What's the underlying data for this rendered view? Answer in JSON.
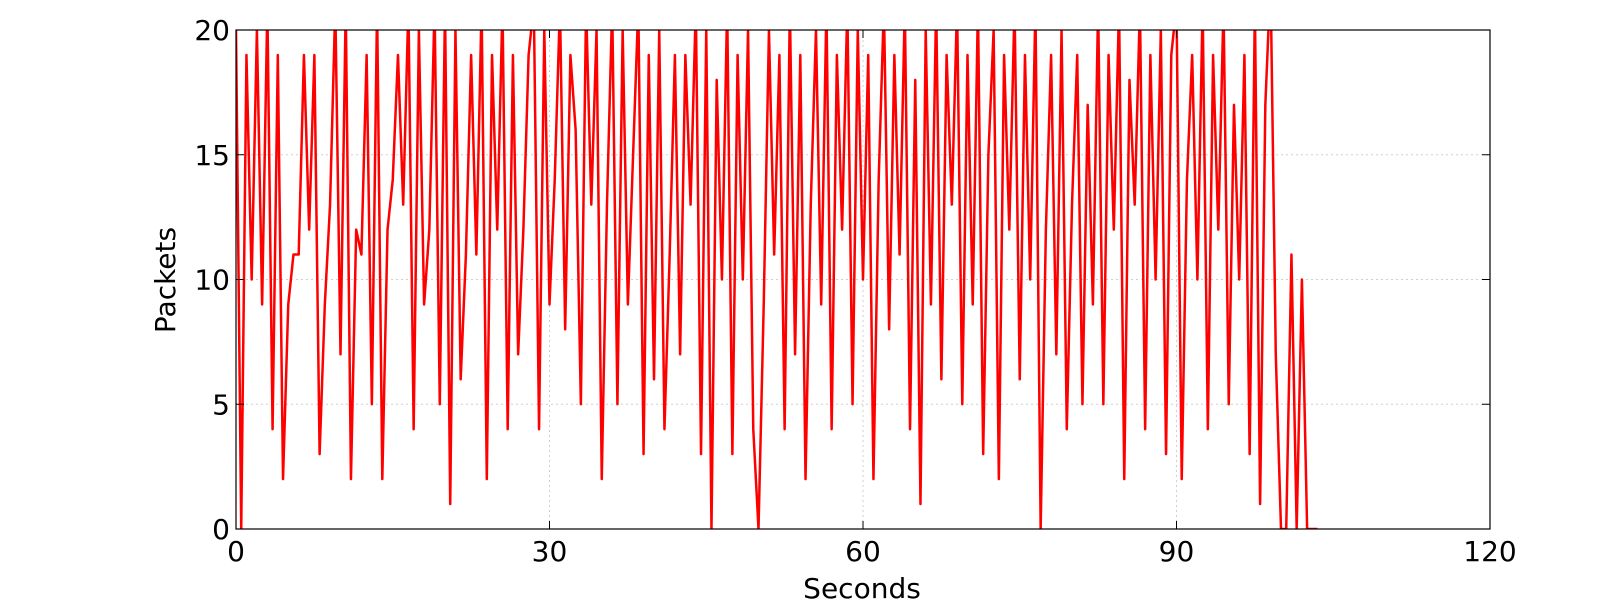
{
  "chart_data": {
    "type": "line",
    "xlabel": "Seconds",
    "ylabel": "Packets",
    "x": [
      0,
      0.5,
      1,
      1.5,
      2,
      2.5,
      3,
      3.5,
      4,
      4.5,
      5,
      5.5,
      6,
      6.5,
      7,
      7.5,
      8,
      8.5,
      9,
      9.5,
      10,
      10.5,
      11,
      11.5,
      12,
      12.5,
      13,
      13.5,
      14,
      14.5,
      15,
      15.5,
      16,
      16.5,
      17,
      17.5,
      18,
      18.5,
      19,
      19.5,
      20,
      20.5,
      21,
      21.5,
      22,
      22.5,
      23,
      23.5,
      24,
      24.5,
      25,
      25.5,
      26,
      26.5,
      27,
      27.5,
      28,
      28.5,
      29,
      29.5,
      30,
      30.5,
      31,
      31.5,
      32,
      32.5,
      33,
      33.5,
      34,
      34.5,
      35,
      35.5,
      36,
      36.5,
      37,
      37.5,
      38,
      38.5,
      39,
      39.5,
      40,
      40.5,
      41,
      41.5,
      42,
      42.5,
      43,
      43.5,
      44,
      44.5,
      45,
      45.5,
      46,
      46.5,
      47,
      47.5,
      48,
      48.5,
      49,
      49.5,
      50,
      50.5,
      51,
      51.5,
      52,
      52.5,
      53,
      53.5,
      54,
      54.5,
      55,
      55.5,
      56,
      56.5,
      57,
      57.5,
      58,
      58.5,
      59,
      59.5,
      60,
      60.5,
      61,
      61.5,
      62,
      62.5,
      63,
      63.5,
      64,
      64.5,
      65,
      65.5,
      66,
      66.5,
      67,
      67.5,
      68,
      68.5,
      69,
      69.5,
      70,
      70.5,
      71,
      71.5,
      72,
      72.5,
      73,
      73.5,
      74,
      74.5,
      75,
      75.5,
      76,
      76.5,
      77,
      77.5,
      78,
      78.5,
      79,
      79.5,
      80,
      80.5,
      81,
      81.5,
      82,
      82.5,
      83,
      83.5,
      84,
      84.5,
      85,
      85.5,
      86,
      86.5,
      87,
      87.5,
      88,
      88.5,
      89,
      89.5,
      90,
      90.5,
      91,
      91.5,
      92,
      92.5,
      93,
      93.5,
      94,
      94.5,
      95,
      95.5,
      96,
      96.5,
      97,
      97.5,
      98,
      98.5,
      99,
      99.5,
      100,
      100.5,
      101,
      101.5,
      102,
      102.5,
      103,
      103.5
    ],
    "series": [
      {
        "name": "packets",
        "color": "#ff0000",
        "values": [
          20,
          0,
          19,
          10,
          20,
          9,
          21,
          4,
          19,
          2,
          9,
          11,
          11,
          19,
          12,
          19,
          3,
          9,
          13,
          21,
          7,
          21,
          2,
          12,
          11,
          19,
          5,
          21,
          2,
          12,
          14,
          19,
          13,
          21,
          4,
          20,
          9,
          12,
          21,
          5,
          21,
          1,
          20,
          6,
          11,
          19,
          11,
          21,
          2,
          19,
          12,
          21,
          4,
          19,
          7,
          12,
          19,
          21,
          4,
          20,
          9,
          14,
          21,
          8,
          19,
          16,
          5,
          21,
          13,
          20,
          2,
          13,
          21,
          5,
          20,
          9,
          15,
          21,
          3,
          19,
          6,
          20,
          4,
          11,
          19,
          7,
          19,
          13,
          21,
          3,
          20,
          0,
          18,
          10,
          21,
          3,
          19,
          10,
          20,
          4,
          0,
          9,
          20,
          11,
          19,
          4,
          21,
          7,
          19,
          2,
          13,
          20,
          9,
          21,
          4,
          19,
          12,
          21,
          5,
          20,
          10,
          19,
          2,
          14,
          21,
          8,
          19,
          11,
          21,
          4,
          18,
          1,
          20,
          9,
          21,
          6,
          19,
          13,
          21,
          5,
          19,
          9,
          21,
          3,
          15,
          20,
          2,
          19,
          12,
          21,
          6,
          19,
          10,
          21,
          0,
          12,
          19,
          7,
          20,
          4,
          13,
          19,
          5,
          17,
          9,
          21,
          5,
          19,
          12,
          21,
          2,
          18,
          13,
          21,
          4,
          19,
          10,
          20,
          3,
          19,
          21,
          2,
          14,
          19,
          10,
          21,
          4,
          19,
          12,
          21,
          5,
          17,
          10,
          19,
          3,
          21,
          1,
          17,
          22,
          7,
          0,
          0,
          11,
          0,
          10,
          0,
          0,
          0
        ]
      }
    ],
    "xlim": [
      0,
      120
    ],
    "xticks": [
      0,
      30,
      60,
      90,
      120
    ],
    "ylim": [
      0,
      20
    ],
    "yticks": [
      0,
      5,
      10,
      15,
      20
    ],
    "grid": true
  }
}
